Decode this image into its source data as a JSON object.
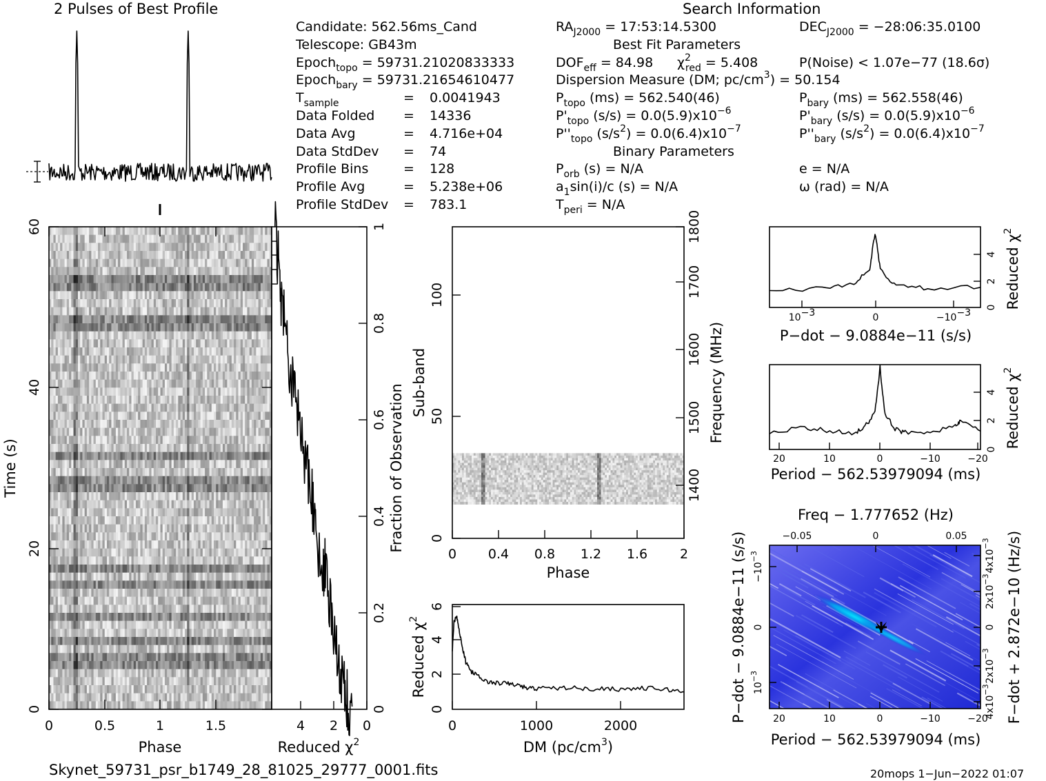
{
  "header": {
    "profile_title": "2 Pulses of Best Profile",
    "search_title": "Search Information",
    "best_fit_title": "Best Fit Parameters",
    "binary_title": "Binary Parameters"
  },
  "info": {
    "candidate": "Candidate:  562.56ms_Cand",
    "telescope": "Telescope:  GB43m",
    "epoch_topo": "Epoch",
    "epoch_topo_sub": "topo",
    "epoch_topo_val": " = 59731.21020833333",
    "epoch_bary": "Epoch",
    "epoch_bary_sub": "bary",
    "epoch_bary_val": " = 59731.21654610477",
    "tsample": "T",
    "tsample_sub": "sample",
    "tsample_eq": "=",
    "tsample_val": "0.0041943",
    "rows": [
      {
        "label": "Data Folded",
        "eq": "=",
        "value": "14336"
      },
      {
        "label": "Data Avg",
        "eq": "=",
        "value": "4.716e+04"
      },
      {
        "label": "Data StdDev",
        "eq": "=",
        "value": "74"
      },
      {
        "label": "Profile Bins",
        "eq": "=",
        "value": "128"
      },
      {
        "label": "Profile Avg",
        "eq": "=",
        "value": "5.238e+06"
      },
      {
        "label": "Profile StdDev",
        "eq": "=",
        "value": "783.1"
      }
    ],
    "ra": "RA",
    "ra_sub": "J2000",
    "ra_val": " = 17:53:14.5300",
    "dec": "DEC",
    "dec_sub": "J2000",
    "dec_val": " = −28:06:35.0100",
    "dof": "DOF",
    "dof_sub": "eff",
    "dof_val": " = 84.98",
    "chi": "χ",
    "chi_sup": "2",
    "chi_sub": "red",
    "chi_val": " = 5.408",
    "pnoise": "P(Noise) < 1.07e−77   (18.6σ)",
    "dm": "Dispersion Measure (DM; pc/cm",
    "dm_sup": "3",
    "dm_val": ") = 50.154",
    "ptopo": "P",
    "ptopo_sub": "topo",
    "ptopo_val": " (ms) =  562.540(46)",
    "pbary": "P",
    "pbary_sub": "bary",
    "pbary_val": " (ms) =  562.558(46)",
    "pdtopo": "P'",
    "pdtopo_sub": "topo",
    "pdtopo_val": " (s/s) = 0.0(5.9)x10",
    "pdtopo_exp": "−6",
    "pdbary": "P'",
    "pdbary_sub": "bary",
    "pdbary_val": " (s/s) = 0.0(5.9)x10",
    "pdbary_exp": "−6",
    "pddtopo": "P''",
    "pddtopo_sub": "topo",
    "pddtopo_val": " (s/s",
    "pddtopo_sup": "2",
    "pddtopo_val2": ") = 0.0(6.4)x10",
    "pddtopo_exp": "−7",
    "pddbary": "P''",
    "pddbary_sub": "bary",
    "pddbary_val": " (s/s",
    "pddbary_sup": "2",
    "pddbary_val2": ") = 0.0(6.4)x10",
    "pddbary_exp": "−7",
    "porb": "P",
    "porb_sub": "orb",
    "porb_val": " (s) = N/A",
    "ecc": "e = N/A",
    "asini": "a",
    "asini_sub": "1",
    "asini_val": "sin(i)/c (s) = N/A",
    "omega": "ω (rad) = N/A",
    "tperi": "T",
    "tperi_sub": "peri",
    "tperi_val": " = N/A"
  },
  "footer": {
    "filename": "Skynet_59731_psr_b1749_28_81025_29777_0001.fits",
    "stamp": "20mops  1−Jun−2022 01:07"
  },
  "colors": {
    "axis": "#000000",
    "grayscale_min": "#000000",
    "grayscale_max": "#ffffff",
    "plane_low": "#1c24d8",
    "plane_mid": "#8c8cf0",
    "plane_high": "#00e5ff"
  },
  "chart_data": [
    {
      "id": "profile",
      "type": "line",
      "title": "2 Pulses of Best Profile",
      "x_range": [
        0,
        2
      ],
      "peaks_at_phase": [
        0.25,
        1.25
      ],
      "x": [],
      "values": []
    },
    {
      "id": "time_phase",
      "type": "heatmap",
      "xlabel": "Phase",
      "ylabel": "Time (s)",
      "xlim": [
        0,
        2
      ],
      "ylim": [
        0,
        60
      ],
      "xticks": [
        "0",
        "0.5",
        "1",
        "1.5"
      ],
      "yticks": [
        "0",
        "20",
        "40",
        "60"
      ],
      "pulse_phases": [
        0.25,
        1.25
      ]
    },
    {
      "id": "chi_vs_time",
      "type": "line",
      "xlabel": "Reduced χ",
      "xlabel_sup": "2",
      "ylabel": "Fraction of Observation",
      "xlim": [
        5.8,
        0
      ],
      "ylim": [
        0,
        1
      ],
      "xticks": [
        "4",
        "2",
        "0"
      ],
      "yticks": [
        "0",
        "0.2",
        "0.4",
        "0.6",
        "0.8",
        "1"
      ],
      "x": [
        0.9,
        1.2,
        1.4,
        1.7,
        2.0,
        2.2,
        2.5,
        2.7,
        3.1,
        3.3,
        3.6,
        4.0,
        4.3,
        4.6,
        4.9,
        5.2,
        5.4,
        5.6
      ],
      "y": [
        0.0,
        0.02,
        0.05,
        0.1,
        0.16,
        0.22,
        0.28,
        0.32,
        0.36,
        0.42,
        0.48,
        0.55,
        0.62,
        0.7,
        0.78,
        0.86,
        0.93,
        1.0
      ]
    },
    {
      "id": "subband_phase",
      "type": "heatmap",
      "xlabel": "Phase",
      "ylabel": "Sub-band",
      "y2label": "Frequency (MHz)",
      "xlim": [
        0,
        2
      ],
      "ylim": [
        0,
        128
      ],
      "y2lim": [
        1350,
        1800
      ],
      "xticks": [
        "0",
        "0.4",
        "0.8",
        "1.2",
        "1.6",
        "2"
      ],
      "yticks": [
        "0",
        "50",
        "100"
      ],
      "y2ticks": [
        "1400",
        "1500",
        "1600",
        "1700",
        "1800"
      ],
      "filled_subbands": [
        14,
        35
      ],
      "pulse_phases": [
        0.26,
        1.27
      ]
    },
    {
      "id": "chi_vs_dm",
      "type": "line",
      "xlabel": "DM (pc/cm",
      "xlabel_sup": "3",
      "xlabel_end": ")",
      "ylabel": "Reduced χ",
      "ylabel_sup": "2",
      "xlim": [
        0,
        2750
      ],
      "ylim": [
        0,
        6
      ],
      "xticks": [
        "0",
        "1000",
        "2000"
      ],
      "yticks": [
        "0",
        "2",
        "4",
        "6"
      ],
      "x": [
        0,
        20,
        50,
        80,
        120,
        160,
        220,
        300,
        400,
        500,
        600,
        700,
        800,
        900,
        1000,
        1200,
        1400,
        1600,
        1800,
        2000,
        2200,
        2400,
        2600,
        2750
      ],
      "y": [
        3.4,
        5.0,
        5.4,
        4.6,
        3.5,
        2.7,
        2.2,
        1.9,
        1.6,
        1.5,
        1.5,
        1.45,
        1.35,
        1.2,
        1.2,
        1.2,
        1.25,
        1.15,
        1.2,
        1.15,
        1.2,
        1.2,
        1.1,
        1.0
      ]
    },
    {
      "id": "chi_vs_pdot",
      "type": "line",
      "xlabel": "P−dot − 9.0884e−11 (s/s)",
      "ylabel": "Reduced χ",
      "ylabel_sup": "2",
      "ylim": [
        0,
        6
      ],
      "xticks": [
        "10",
        "0",
        "−10"
      ],
      "xtick_exp": "−3",
      "yticks": [
        "0",
        "2",
        "4"
      ],
      "x": [
        -1.0,
        -0.5,
        -0.2,
        -0.05,
        0,
        0.05,
        0.2,
        0.5,
        1.0
      ],
      "y": [
        1.3,
        1.4,
        1.8,
        2.8,
        5.6,
        2.8,
        1.6,
        1.4,
        1.5
      ]
    },
    {
      "id": "chi_vs_period",
      "type": "line",
      "xlabel": "Period − 562.53979094 (ms)",
      "ylabel": "Reduced χ",
      "ylabel_sup": "2",
      "xlim": [
        22,
        -20
      ],
      "ylim": [
        0,
        6
      ],
      "xticks": [
        "20",
        "10",
        "0",
        "−10",
        "−20"
      ],
      "yticks": [
        "0",
        "2",
        "4"
      ],
      "x": [
        22,
        15,
        10,
        5,
        3,
        1,
        0,
        -1,
        -3,
        -5,
        -10,
        -15,
        -16,
        -20
      ],
      "y": [
        1.2,
        1.5,
        1.3,
        1.2,
        1.6,
        2.6,
        5.8,
        2.5,
        1.4,
        1.2,
        1.3,
        1.6,
        2.0,
        1.3
      ]
    },
    {
      "id": "pdot_period_plane",
      "type": "heatmap",
      "title": "Freq − 1.777652 (Hz)",
      "xlabel": "Period − 562.53979094 (ms)",
      "ylabel": "P−dot − 9.0884e−11 (s/s)",
      "y2label": "F−dot + 2.872e−10 (Hz/s)",
      "xticks": [
        "20",
        "10",
        "0",
        "−10",
        "−20"
      ],
      "top_ticks": [
        "−0.05",
        "0",
        "0.05"
      ],
      "yticks": [
        "10",
        "0",
        "−10"
      ],
      "ytick_exp": "−3",
      "y2ticks": [
        "4x10",
        "2x10",
        "0",
        "2x10",
        "4x10"
      ],
      "y2tick_exp": "−3",
      "peak": {
        "x": 0,
        "y": 0
      }
    }
  ]
}
